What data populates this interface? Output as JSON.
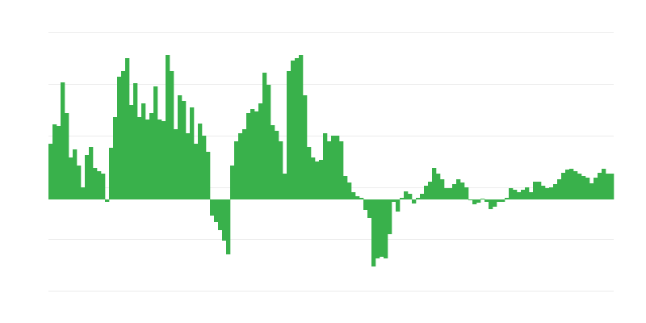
{
  "chart_data": {
    "type": "bar",
    "title": "",
    "xlabel": "",
    "ylabel": "",
    "grid": true,
    "ylim": [
      -113,
      207
    ],
    "gridlines": [
      207,
      143,
      79,
      15,
      -49,
      -113
    ],
    "bar_color": "#39b14b",
    "grid_color": "#ececec",
    "values": [
      69,
      93,
      91,
      145,
      107,
      52,
      62,
      42,
      15,
      55,
      65,
      39,
      35,
      32,
      -3,
      64,
      102,
      152,
      159,
      175,
      117,
      144,
      102,
      119,
      99,
      107,
      140,
      99,
      97,
      179,
      159,
      87,
      129,
      122,
      82,
      114,
      69,
      94,
      79,
      59,
      -20,
      -28,
      -38,
      -51,
      -68,
      42,
      72,
      82,
      87,
      107,
      112,
      109,
      119,
      157,
      142,
      92,
      85,
      72,
      32,
      159,
      172,
      175,
      179,
      129,
      65,
      52,
      47,
      49,
      82,
      72,
      79,
      79,
      72,
      29,
      21,
      9,
      4,
      2,
      -13,
      -23,
      -83,
      -73,
      -71,
      -73,
      -43,
      -3,
      -15,
      2,
      10,
      7,
      -5,
      2,
      7,
      17,
      22,
      39,
      32,
      25,
      14,
      14,
      19,
      25,
      21,
      15,
      -1,
      -6,
      -4,
      1,
      -3,
      -12,
      -9,
      -3,
      -3,
      2,
      14,
      12,
      9,
      12,
      15,
      9,
      22,
      22,
      17,
      14,
      15,
      19,
      25,
      33,
      37,
      38,
      35,
      32,
      29,
      27,
      20,
      27,
      33,
      38,
      32,
      32
    ]
  }
}
